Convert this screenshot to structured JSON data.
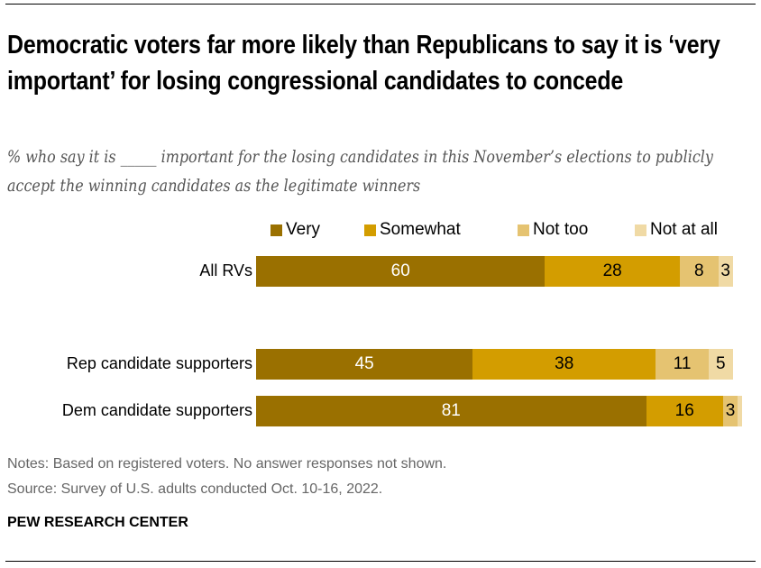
{
  "chart_data": {
    "type": "bar",
    "orientation": "horizontal",
    "stacked": true,
    "title": "Democratic voters far more likely than Republicans to say it is ‘very important’ for losing congressional candidates to concede",
    "subtitle": "% who say it is _____ important for the losing candidates in this November’s elections to publicly accept the winning candidates as the legitimate winners",
    "legend_position": "top",
    "xlim": [
      0,
      100
    ],
    "grid": false,
    "categories": [
      "All RVs",
      "Rep candidate supporters",
      "Dem candidate supporters"
    ],
    "series": [
      {
        "name": "Very",
        "color": "#9a7000",
        "text_color": "#ffffff",
        "values": [
          60,
          45,
          81
        ],
        "labels": [
          "60",
          "45",
          "81"
        ]
      },
      {
        "name": "Somewhat",
        "color": "#d39d00",
        "text_color": "#000000",
        "values": [
          28,
          38,
          16
        ],
        "labels": [
          "28",
          "38",
          "16"
        ]
      },
      {
        "name": "Not too",
        "color": "#e5c371",
        "text_color": "#000000",
        "values": [
          8,
          11,
          3
        ],
        "labels": [
          "8",
          "11",
          "3"
        ]
      },
      {
        "name": "Not at all",
        "color": "#f0daa5",
        "text_color": "#000000",
        "values": [
          3,
          5,
          1
        ],
        "labels": [
          "3",
          "5",
          ""
        ]
      }
    ]
  },
  "notes": "Notes: Based on registered voters. No answer responses not shown.",
  "source": "Source: Survey of U.S. adults conducted Oct. 10-16, 2022.",
  "brand": "PEW RESEARCH CENTER"
}
